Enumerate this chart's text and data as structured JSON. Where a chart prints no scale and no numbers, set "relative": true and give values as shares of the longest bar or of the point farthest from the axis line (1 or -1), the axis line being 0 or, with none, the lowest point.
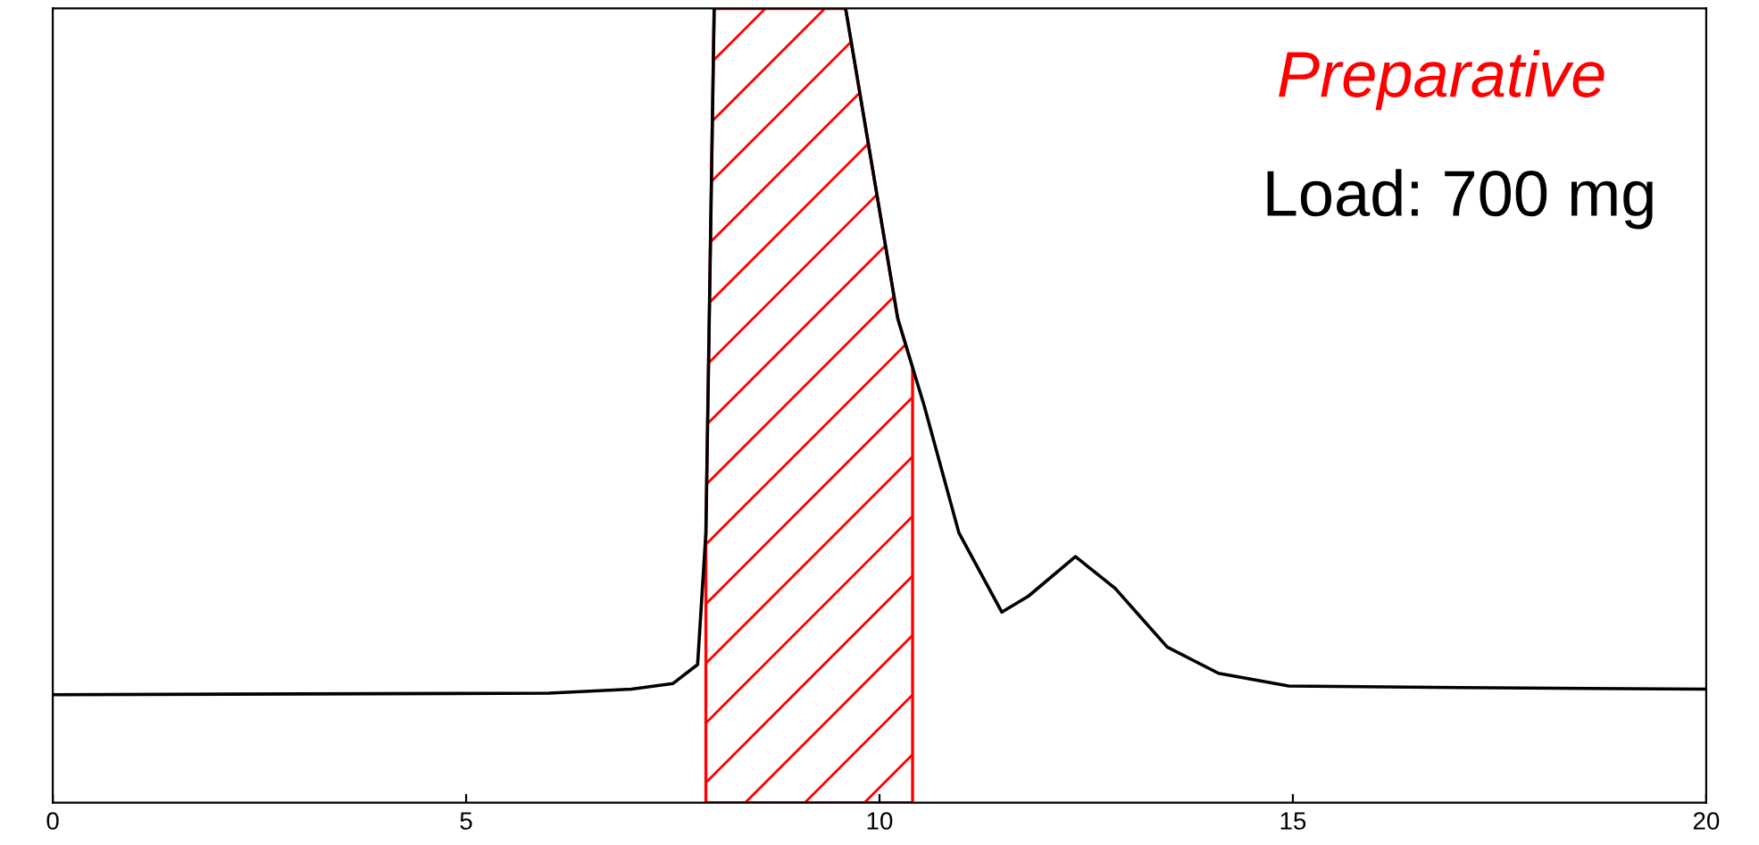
{
  "chart_data": {
    "type": "line",
    "relative": true,
    "xlim": [
      0,
      20
    ],
    "xticks": [
      0,
      5,
      10,
      15,
      20
    ],
    "tick_labels": "x",
    "grid": false,
    "legend": false,
    "series": [
      {
        "color": "#000000",
        "x": [
          0,
          3,
          6,
          7,
          7.5,
          7.8,
          7.9,
          8.0,
          8.3,
          9.3,
          9.59,
          10.22,
          10.54,
          10.96,
          11.48,
          11.8,
          12.37,
          12.85,
          13.48,
          14.1,
          14.95,
          17,
          20
        ],
        "values": [
          0.136,
          0.137,
          0.138,
          0.143,
          0.15,
          0.174,
          0.34,
          1,
          null,
          null,
          1,
          0.61,
          0.5,
          0.34,
          0.24,
          0.26,
          0.31,
          0.27,
          0.196,
          0.163,
          0.147,
          0.145,
          0.143
        ]
      }
    ],
    "bands": [
      {
        "axis": "x",
        "from": 7.9,
        "to": 10.4,
        "color": "#ff0000"
      }
    ],
    "annotations": [
      "Preparative",
      "Load: 700 mg"
    ]
  }
}
